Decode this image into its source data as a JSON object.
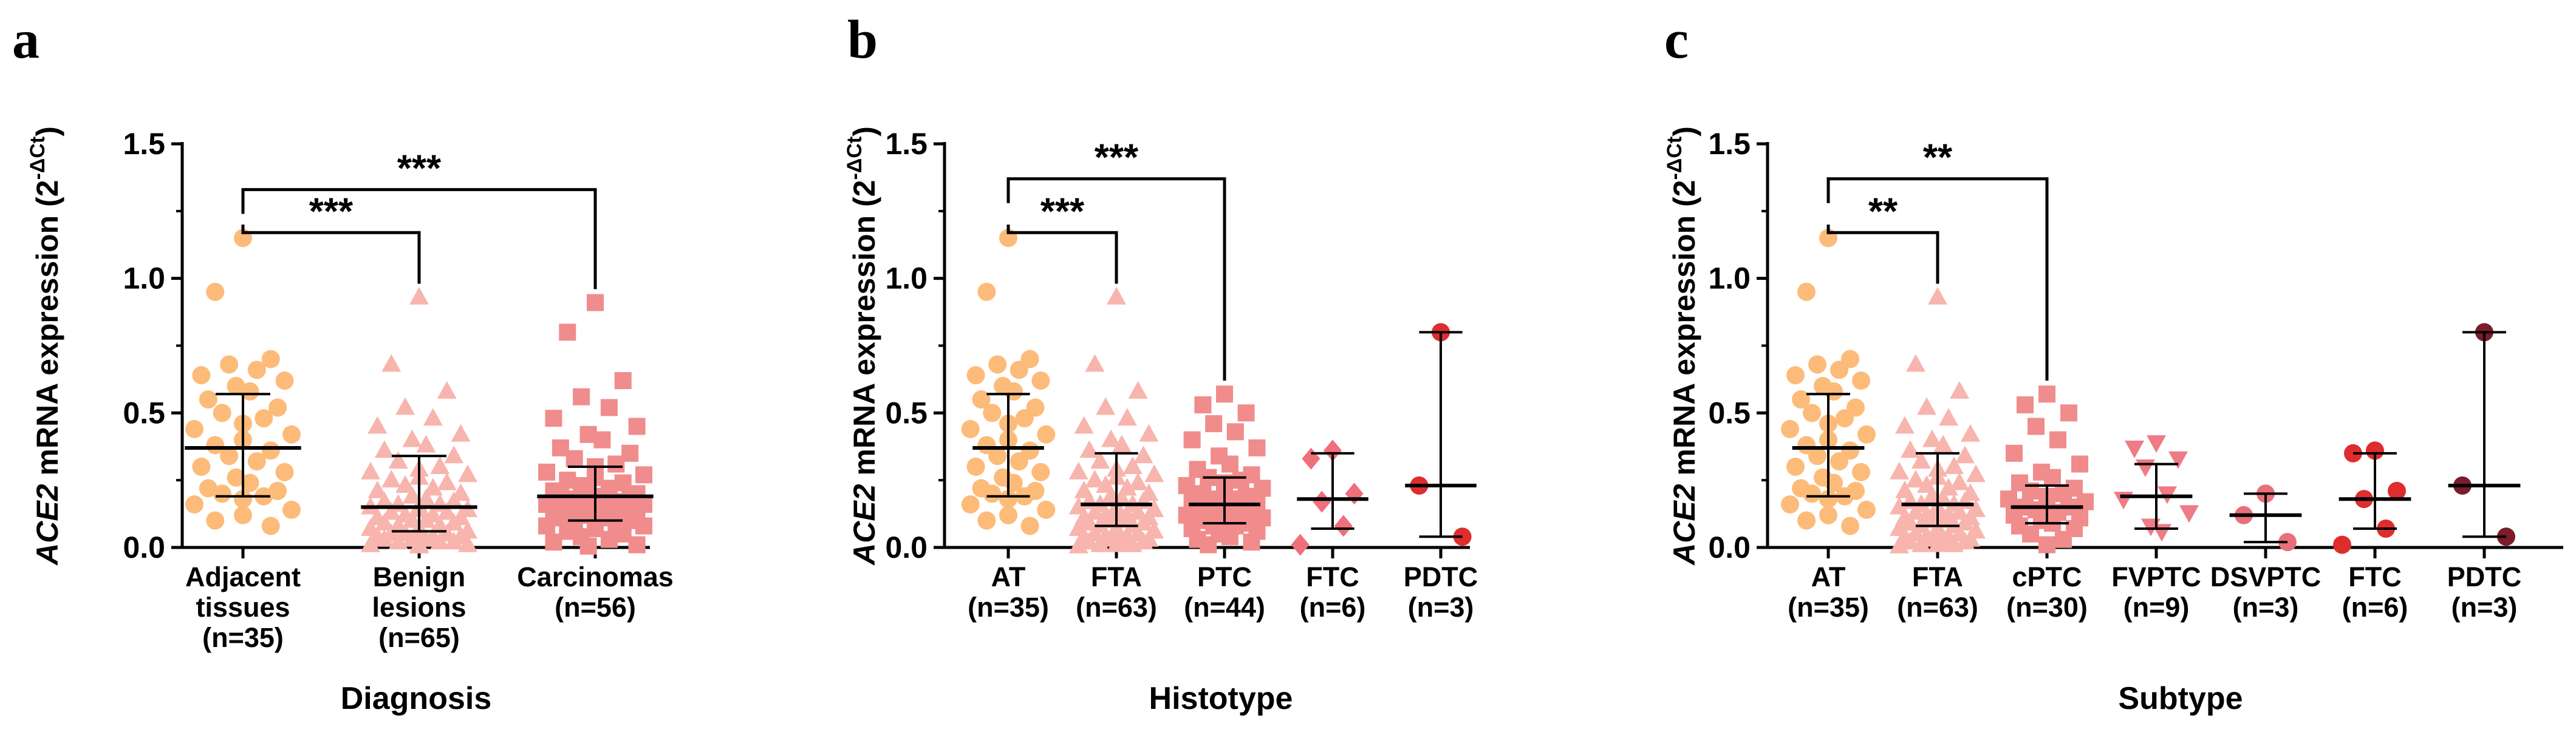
{
  "chart_data": [
    {
      "panel": "a",
      "type": "scatter",
      "xlabel": "Diagnosis",
      "ylabel_gene": "ACE2",
      "ylabel_rest": " mRNA expression (2",
      "ylabel_sup": "-ΔCt",
      "ylabel_close": ")",
      "ylim": [
        0,
        1.5
      ],
      "yticks": [
        "0.0",
        "0.5",
        "1.0",
        "1.5"
      ],
      "groups": [
        {
          "label": [
            "Adjacent",
            "tissues",
            "(n=35)"
          ],
          "marker": "circle",
          "color": "#FDBB7A",
          "median": 0.37,
          "q1": 0.19,
          "q3": 0.57,
          "values": [
            1.15,
            0.95,
            0.7,
            0.68,
            0.66,
            0.64,
            0.62,
            0.6,
            0.58,
            0.55,
            0.52,
            0.5,
            0.48,
            0.46,
            0.44,
            0.42,
            0.4,
            0.38,
            0.36,
            0.34,
            0.32,
            0.3,
            0.28,
            0.26,
            0.24,
            0.22,
            0.21,
            0.2,
            0.19,
            0.18,
            0.16,
            0.14,
            0.12,
            0.1,
            0.08
          ]
        },
        {
          "label": [
            "Benign",
            "lesions",
            "(n=65)"
          ],
          "marker": "triangle",
          "color": "#F7B5AE",
          "median": 0.15,
          "q1": 0.06,
          "q3": 0.34,
          "values": [
            0.93,
            0.68,
            0.58,
            0.52,
            0.48,
            0.45,
            0.42,
            0.4,
            0.38,
            0.36,
            0.34,
            0.32,
            0.3,
            0.29,
            0.28,
            0.27,
            0.26,
            0.25,
            0.24,
            0.23,
            0.22,
            0.21,
            0.2,
            0.19,
            0.18,
            0.17,
            0.17,
            0.16,
            0.16,
            0.15,
            0.15,
            0.14,
            0.14,
            0.13,
            0.13,
            0.12,
            0.12,
            0.11,
            0.11,
            0.1,
            0.1,
            0.09,
            0.09,
            0.08,
            0.08,
            0.07,
            0.07,
            0.06,
            0.06,
            0.05,
            0.05,
            0.05,
            0.04,
            0.04,
            0.04,
            0.03,
            0.03,
            0.03,
            0.02,
            0.02,
            0.02,
            0.01,
            0.01,
            0.01,
            0.005
          ]
        },
        {
          "label": [
            "Carcinomas",
            "(n=56)"
          ],
          "marker": "square",
          "color": "#F08C8C",
          "median": 0.19,
          "q1": 0.1,
          "q3": 0.3,
          "values": [
            0.91,
            0.8,
            0.62,
            0.56,
            0.52,
            0.48,
            0.45,
            0.42,
            0.4,
            0.37,
            0.35,
            0.33,
            0.31,
            0.3,
            0.28,
            0.27,
            0.26,
            0.25,
            0.24,
            0.23,
            0.22,
            0.21,
            0.2,
            0.2,
            0.19,
            0.19,
            0.18,
            0.18,
            0.17,
            0.17,
            0.16,
            0.16,
            0.15,
            0.15,
            0.14,
            0.14,
            0.13,
            0.13,
            0.12,
            0.12,
            0.11,
            0.11,
            0.1,
            0.1,
            0.09,
            0.09,
            0.08,
            0.08,
            0.07,
            0.06,
            0.05,
            0.04,
            0.03,
            0.02,
            0.01,
            0.005
          ]
        }
      ],
      "significance": [
        {
          "from": 0,
          "to": 1,
          "y": 1.17,
          "label": "***"
        },
        {
          "from": 0,
          "to": 2,
          "y": 1.33,
          "label": "***"
        }
      ]
    },
    {
      "panel": "b",
      "type": "scatter",
      "xlabel": "Histotype",
      "ylabel_gene": "ACE2",
      "ylabel_rest": " mRNA expression (2",
      "ylabel_sup": "-ΔCt",
      "ylabel_close": ")",
      "ylim": [
        0,
        1.5
      ],
      "yticks": [
        "0.0",
        "0.5",
        "1.0",
        "1.5"
      ],
      "groups": [
        {
          "label": [
            "AT",
            "(n=35)"
          ],
          "marker": "circle",
          "color": "#FDBB7A",
          "median": 0.37,
          "q1": 0.19,
          "q3": 0.57,
          "values": [
            1.15,
            0.95,
            0.7,
            0.68,
            0.66,
            0.64,
            0.62,
            0.6,
            0.58,
            0.55,
            0.52,
            0.5,
            0.48,
            0.46,
            0.44,
            0.42,
            0.4,
            0.38,
            0.36,
            0.34,
            0.32,
            0.3,
            0.28,
            0.26,
            0.24,
            0.22,
            0.21,
            0.2,
            0.19,
            0.18,
            0.16,
            0.14,
            0.12,
            0.1,
            0.08
          ]
        },
        {
          "label": [
            "FTA",
            "(n=63)"
          ],
          "marker": "triangle",
          "color": "#F7B5AE",
          "median": 0.16,
          "q1": 0.08,
          "q3": 0.35,
          "values": [
            0.93,
            0.68,
            0.58,
            0.52,
            0.48,
            0.45,
            0.42,
            0.4,
            0.38,
            0.36,
            0.34,
            0.32,
            0.3,
            0.29,
            0.28,
            0.27,
            0.26,
            0.25,
            0.24,
            0.23,
            0.22,
            0.21,
            0.2,
            0.19,
            0.18,
            0.17,
            0.17,
            0.16,
            0.16,
            0.15,
            0.15,
            0.14,
            0.14,
            0.13,
            0.13,
            0.12,
            0.12,
            0.11,
            0.11,
            0.1,
            0.1,
            0.09,
            0.09,
            0.08,
            0.08,
            0.07,
            0.07,
            0.06,
            0.06,
            0.05,
            0.05,
            0.04,
            0.04,
            0.04,
            0.03,
            0.03,
            0.02,
            0.02,
            0.02,
            0.01,
            0.01,
            0.01,
            0.005
          ]
        },
        {
          "label": [
            "PTC",
            "(n=44)"
          ],
          "marker": "square",
          "color": "#F08C8C",
          "median": 0.16,
          "q1": 0.09,
          "q3": 0.26,
          "values": [
            0.57,
            0.53,
            0.5,
            0.46,
            0.43,
            0.4,
            0.37,
            0.34,
            0.31,
            0.29,
            0.27,
            0.26,
            0.25,
            0.24,
            0.23,
            0.22,
            0.21,
            0.2,
            0.19,
            0.18,
            0.18,
            0.17,
            0.16,
            0.16,
            0.15,
            0.15,
            0.14,
            0.14,
            0.13,
            0.12,
            0.12,
            0.11,
            0.1,
            0.1,
            0.09,
            0.08,
            0.08,
            0.07,
            0.06,
            0.05,
            0.04,
            0.03,
            0.02,
            0.01
          ]
        },
        {
          "label": [
            "FTC",
            "(n=6)"
          ],
          "marker": "diamond",
          "color": "#EF6F7B",
          "median": 0.18,
          "q1": 0.07,
          "q3": 0.35,
          "values": [
            0.36,
            0.33,
            0.2,
            0.17,
            0.08,
            0.01
          ]
        },
        {
          "label": [
            "PDTC",
            "(n=3)"
          ],
          "marker": "circle",
          "color": "#DE2D2D",
          "median": 0.23,
          "q1": 0.04,
          "q3": 0.8,
          "values": [
            0.8,
            0.23,
            0.04
          ]
        }
      ],
      "significance": [
        {
          "from": 0,
          "to": 1,
          "y": 1.17,
          "label": "***"
        },
        {
          "from": 0,
          "to": 2,
          "y": 1.37,
          "label": "***"
        }
      ]
    },
    {
      "panel": "c",
      "type": "scatter",
      "xlabel": "Subtype",
      "ylabel_gene": "ACE2",
      "ylabel_rest": " mRNA expression (2",
      "ylabel_sup": "-ΔCt",
      "ylabel_close": ")",
      "ylim": [
        0,
        1.5
      ],
      "yticks": [
        "0.0",
        "0.5",
        "1.0",
        "1.5"
      ],
      "groups": [
        {
          "label": [
            "AT",
            "(n=35)"
          ],
          "marker": "circle",
          "color": "#FDBB7A",
          "median": 0.37,
          "q1": 0.19,
          "q3": 0.57,
          "values": [
            1.15,
            0.95,
            0.7,
            0.68,
            0.66,
            0.64,
            0.62,
            0.6,
            0.58,
            0.55,
            0.52,
            0.5,
            0.48,
            0.46,
            0.44,
            0.42,
            0.4,
            0.38,
            0.36,
            0.34,
            0.32,
            0.3,
            0.28,
            0.26,
            0.24,
            0.22,
            0.21,
            0.2,
            0.19,
            0.18,
            0.16,
            0.14,
            0.12,
            0.1,
            0.08
          ]
        },
        {
          "label": [
            "FTA",
            "(n=63)"
          ],
          "marker": "triangle",
          "color": "#F7B5AE",
          "median": 0.16,
          "q1": 0.08,
          "q3": 0.35,
          "values": [
            0.93,
            0.68,
            0.58,
            0.52,
            0.48,
            0.45,
            0.42,
            0.4,
            0.38,
            0.36,
            0.34,
            0.32,
            0.3,
            0.29,
            0.28,
            0.27,
            0.26,
            0.25,
            0.24,
            0.23,
            0.22,
            0.21,
            0.2,
            0.19,
            0.18,
            0.17,
            0.17,
            0.16,
            0.16,
            0.15,
            0.15,
            0.14,
            0.14,
            0.13,
            0.13,
            0.12,
            0.12,
            0.11,
            0.11,
            0.1,
            0.1,
            0.09,
            0.09,
            0.08,
            0.08,
            0.07,
            0.07,
            0.06,
            0.06,
            0.05,
            0.05,
            0.04,
            0.04,
            0.04,
            0.03,
            0.03,
            0.02,
            0.02,
            0.02,
            0.01,
            0.01,
            0.01,
            0.005
          ]
        },
        {
          "label": [
            "cPTC",
            "(n=30)"
          ],
          "marker": "square",
          "color": "#F08C8C",
          "median": 0.15,
          "q1": 0.09,
          "q3": 0.23,
          "values": [
            0.57,
            0.53,
            0.5,
            0.45,
            0.4,
            0.35,
            0.31,
            0.28,
            0.26,
            0.24,
            0.22,
            0.21,
            0.2,
            0.19,
            0.18,
            0.17,
            0.16,
            0.15,
            0.15,
            0.14,
            0.13,
            0.12,
            0.11,
            0.1,
            0.09,
            0.08,
            0.07,
            0.05,
            0.03,
            0.01
          ]
        },
        {
          "label": [
            "FVPTC",
            "(n=9)"
          ],
          "marker": "triangle-down",
          "color": "#EF7B86",
          "median": 0.19,
          "q1": 0.07,
          "q3": 0.31,
          "values": [
            0.39,
            0.37,
            0.33,
            0.3,
            0.2,
            0.18,
            0.13,
            0.08,
            0.06
          ]
        },
        {
          "label": [
            "DSVPTC",
            "(n=3)"
          ],
          "marker": "circle",
          "color": "#E8707A",
          "median": 0.12,
          "q1": 0.02,
          "q3": 0.2,
          "values": [
            0.2,
            0.12,
            0.02
          ]
        },
        {
          "label": [
            "FTC",
            "(n=6)"
          ],
          "marker": "circle",
          "color": "#DE2D2D",
          "median": 0.18,
          "q1": 0.07,
          "q3": 0.35,
          "values": [
            0.36,
            0.35,
            0.21,
            0.18,
            0.07,
            0.01
          ]
        },
        {
          "label": [
            "PDTC",
            "(n=3)"
          ],
          "marker": "circle",
          "color": "#7A1C2A",
          "median": 0.23,
          "q1": 0.04,
          "q3": 0.8,
          "values": [
            0.8,
            0.23,
            0.04
          ]
        }
      ],
      "significance": [
        {
          "from": 0,
          "to": 1,
          "y": 1.17,
          "label": "**"
        },
        {
          "from": 0,
          "to": 2,
          "y": 1.37,
          "label": "**"
        }
      ]
    }
  ]
}
